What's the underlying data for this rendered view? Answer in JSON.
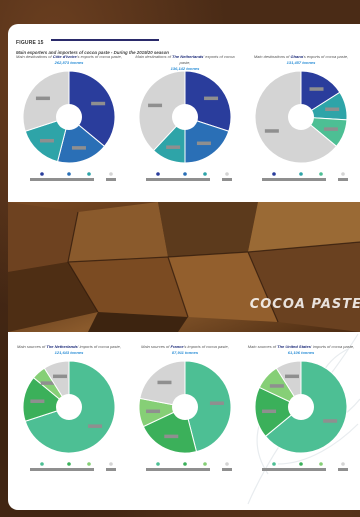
{
  "figure": {
    "label": "FIGURE 15",
    "title": "Main exporters and importers of cocoa paste - During the 2019/20 season"
  },
  "photo": {
    "caption": "COCOA PASTE"
  },
  "colors": {
    "dark_blue": "#2a3d9c",
    "blue": "#2a6fb6",
    "teal": "#2ea4a8",
    "mint": "#4dbf94",
    "grey": "#d4d4d4",
    "green": "#3bb05a",
    "light_green": "#86cf76",
    "pale_green": "#b7e0a8"
  },
  "chart_data": [
    {
      "type": "pie",
      "title_prefix": "Main destinations of ",
      "country": "Côte d'Ivoire",
      "title_suffix": "'s exports of cocoa paste,",
      "value_text": "262,873 tonnes",
      "series": [
        {
          "values": [
            36,
            18,
            16,
            30
          ]
        }
      ],
      "colors": [
        "#2a3d9c",
        "#2a6fb6",
        "#2ea4a8",
        "#d4d4d4"
      ]
    },
    {
      "type": "pie",
      "title_prefix": "Main destinations of ",
      "country": "The Netherlands",
      "title_suffix": "' exports of cocoa paste,",
      "value_text": "136,142 tonnes",
      "series": [
        {
          "values": [
            30,
            20,
            12,
            38
          ]
        }
      ],
      "colors": [
        "#2a3d9c",
        "#2a6fb6",
        "#2ea4a8",
        "#d4d4d4"
      ]
    },
    {
      "type": "pie",
      "title_prefix": "Main destinations of ",
      "country": "Ghana",
      "title_suffix": "'s exports of cocoa paste,",
      "value_text": "131,457 tonnes",
      "series": [
        {
          "values": [
            16,
            10,
            10,
            64
          ]
        }
      ],
      "colors": [
        "#2a3d9c",
        "#2ea4a8",
        "#4dbf94",
        "#d4d4d4"
      ]
    },
    {
      "type": "pie",
      "title_prefix": "Main sources of ",
      "country": "The Netherlands",
      "title_suffix": "' imports of cocoa paste,",
      "value_text": "121,643 tonnes",
      "series": [
        {
          "values": [
            70,
            16,
            5,
            9
          ]
        }
      ],
      "colors": [
        "#4dbf94",
        "#3bb05a",
        "#86cf76",
        "#d4d4d4"
      ]
    },
    {
      "type": "pie",
      "title_prefix": "Main sources of ",
      "country": "France",
      "title_suffix": "'s imports of cocoa paste,",
      "value_text": "87,911 tonnes",
      "series": [
        {
          "values": [
            46,
            22,
            10,
            22
          ]
        }
      ],
      "colors": [
        "#4dbf94",
        "#3bb05a",
        "#86cf76",
        "#d4d4d4"
      ]
    },
    {
      "type": "pie",
      "title_prefix": "Main sources of ",
      "country": "The United States",
      "title_suffix": "' imports of cocoa paste,",
      "value_text": "61,106 tonnes",
      "series": [
        {
          "values": [
            64,
            18,
            9,
            9
          ]
        }
      ],
      "colors": [
        "#4dbf94",
        "#3bb05a",
        "#86cf76",
        "#d4d4d4"
      ]
    }
  ]
}
